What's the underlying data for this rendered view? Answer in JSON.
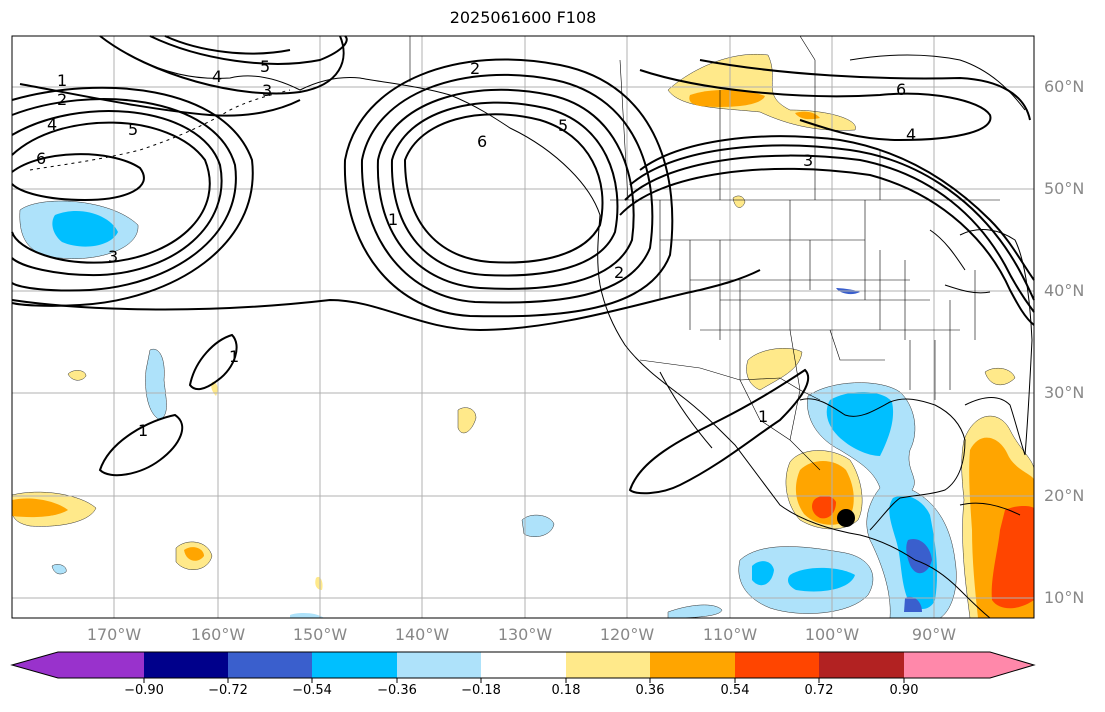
{
  "title": "2025061600 F108",
  "lat_labels": [
    "60°N",
    "50°N",
    "40°N",
    "30°N",
    "20°N",
    "10°N"
  ],
  "lon_labels": [
    "170°W",
    "160°W",
    "150°W",
    "140°W",
    "130°W",
    "120°W",
    "110°W",
    "100°W",
    "90°W"
  ],
  "colorbar": {
    "ticks": [
      "−0.90",
      "−0.72",
      "−0.54",
      "−0.36",
      "−0.18",
      "0.18",
      "0.36",
      "0.54",
      "0.72",
      "0.90"
    ],
    "colors": [
      "#9932CC",
      "#00008B",
      "#3A5FCD",
      "#00BFFF",
      "#AEE2FA",
      "#FFFFFF",
      "#FFE98A",
      "#FFA500",
      "#FF4500",
      "#B22222",
      "#FF88AA"
    ]
  },
  "contour_labels": [
    "1",
    "2",
    "3",
    "4",
    "5",
    "6",
    "2",
    "5",
    "6",
    "3",
    "6",
    "4",
    "1",
    "2",
    "3",
    "1",
    "1",
    "1"
  ],
  "marker": {
    "type": "filled-circle",
    "color": "#000000"
  }
}
